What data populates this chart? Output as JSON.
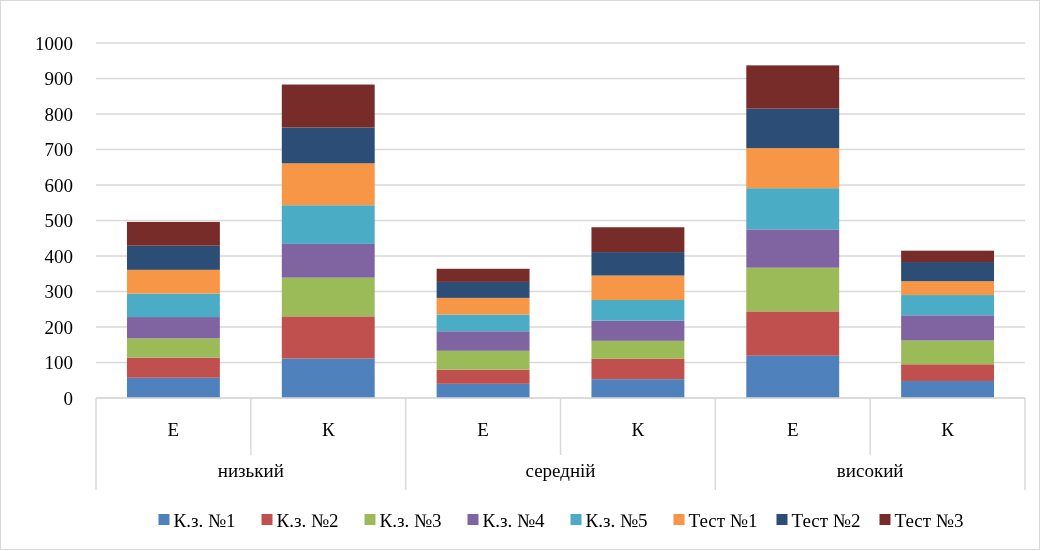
{
  "chart_data": {
    "type": "bar",
    "stacked": true,
    "categories": [
      "Е",
      "К",
      "Е",
      "К",
      "Е",
      "К"
    ],
    "annotations": [
      "низький",
      "середній",
      "високий"
    ],
    "series": [
      {
        "name": "К.з. №1",
        "color": "#4f81bd",
        "values": [
          57,
          111,
          40,
          53,
          119,
          48
        ]
      },
      {
        "name": "К.з. №2",
        "color": "#c0504d",
        "values": [
          57,
          119,
          40,
          58,
          125,
          47
        ]
      },
      {
        "name": "К.з. №3",
        "color": "#9bbb59",
        "values": [
          54,
          109,
          53,
          50,
          123,
          67
        ]
      },
      {
        "name": "К.з. №4",
        "color": "#8064a2",
        "values": [
          60,
          95,
          55,
          57,
          108,
          71
        ]
      },
      {
        "name": "К.з. №5",
        "color": "#4bacc6",
        "values": [
          66,
          109,
          47,
          58,
          116,
          57
        ]
      },
      {
        "name": "Тест №1",
        "color": "#f79646",
        "values": [
          67,
          118,
          47,
          69,
          113,
          39
        ]
      },
      {
        "name": "Тест №2",
        "color": "#2c4d75",
        "values": [
          68,
          101,
          45,
          66,
          111,
          54
        ]
      },
      {
        "name": "Тест №3",
        "color": "#772c2a",
        "values": [
          67,
          121,
          37,
          70,
          122,
          32
        ]
      }
    ],
    "ylim": [
      0,
      1000
    ],
    "yticks": [
      0,
      100,
      200,
      300,
      400,
      500,
      600,
      700,
      800,
      900,
      1000
    ],
    "grid": "y",
    "legend": "bottom"
  }
}
